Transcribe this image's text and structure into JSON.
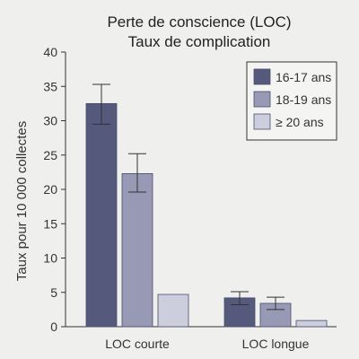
{
  "chart_data": {
    "type": "bar",
    "title": [
      "Perte de conscience (LOC)",
      "Taux de complication"
    ],
    "ylabel": "Taux pour 10 000 collectes",
    "xlabel": "",
    "ylim": [
      0,
      40
    ],
    "yticks": [
      0,
      5,
      10,
      15,
      20,
      25,
      30,
      35,
      40
    ],
    "categories": [
      "LOC courte",
      "LOC longue"
    ],
    "legend_position": "top-right",
    "series": [
      {
        "name": "16-17 ans",
        "color": "#555a7c",
        "values": [
          32.5,
          4.2
        ],
        "error": [
          [
            29.5,
            35.3
          ],
          [
            3.2,
            5.1
          ]
        ]
      },
      {
        "name": "18-19 ans",
        "color": "#9799b5",
        "values": [
          22.3,
          3.4
        ],
        "error": [
          [
            19.6,
            25.2
          ],
          [
            2.5,
            4.3
          ]
        ]
      },
      {
        "name": "≥ 20 ans",
        "color": "#cdcedd",
        "values": [
          4.7,
          0.9
        ],
        "error": [
          null,
          null
        ]
      }
    ]
  }
}
